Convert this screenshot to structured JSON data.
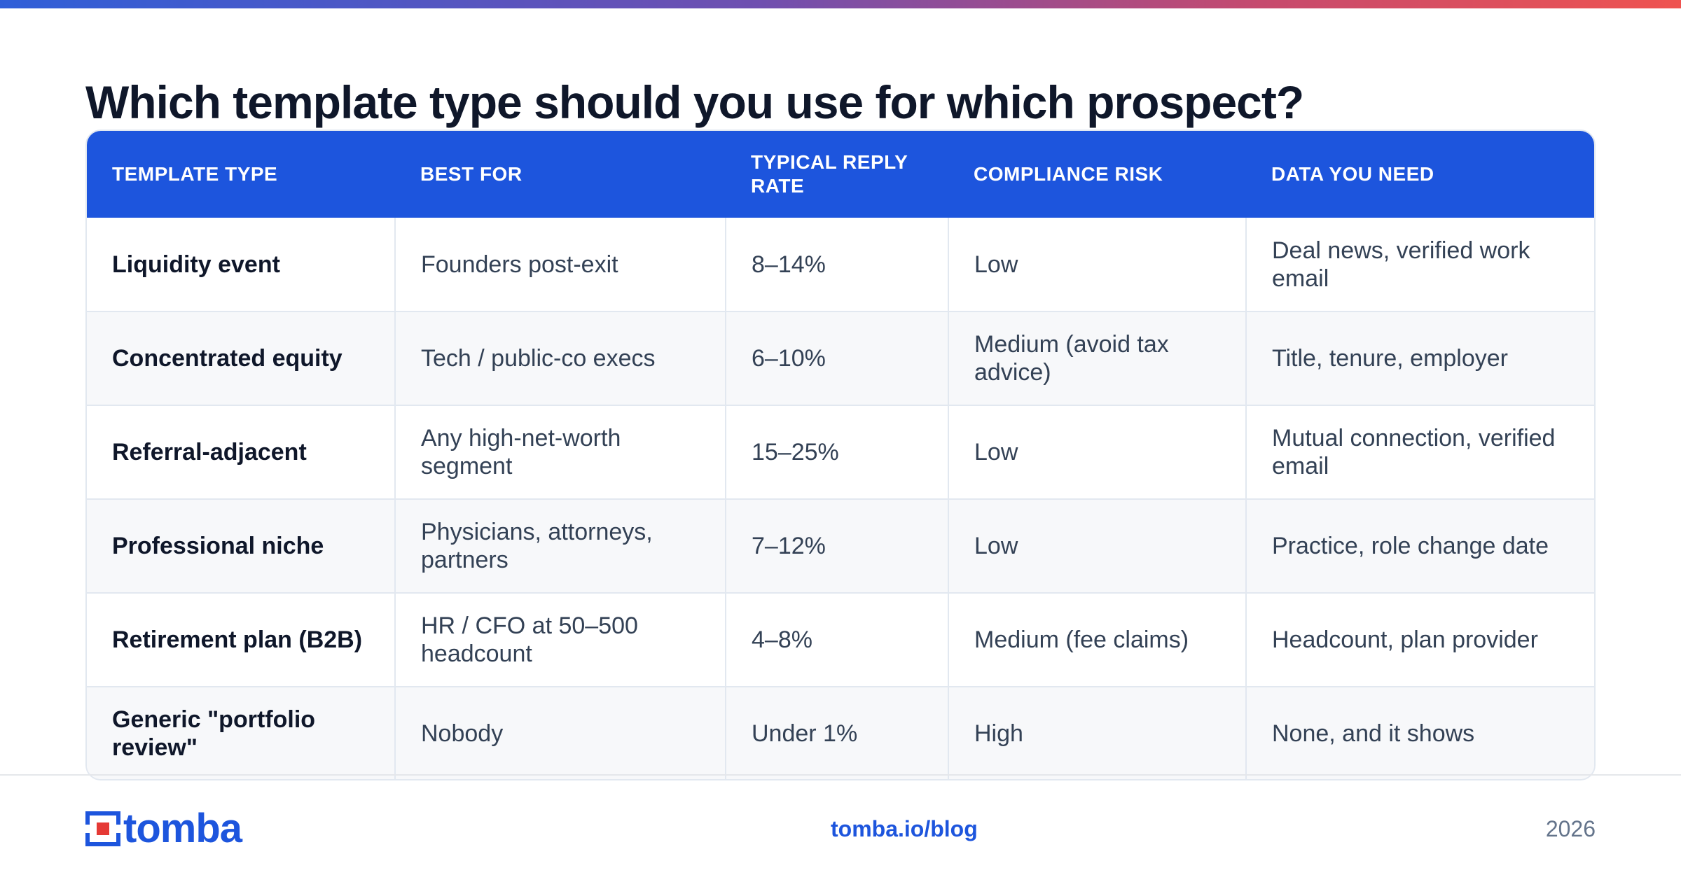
{
  "title": "Which template type should you use for which prospect?",
  "table": {
    "headers": [
      "TEMPLATE TYPE",
      "BEST FOR",
      "TYPICAL REPLY RATE",
      "COMPLIANCE RISK",
      "DATA YOU NEED"
    ],
    "rows": [
      [
        "Liquidity event",
        "Founders post-exit",
        "8–14%",
        "Low",
        "Deal news, verified work email"
      ],
      [
        "Concentrated equity",
        "Tech / public-co execs",
        "6–10%",
        "Medium (avoid tax advice)",
        "Title, tenure, employer"
      ],
      [
        "Referral-adjacent",
        "Any high-net-worth segment",
        "15–25%",
        "Low",
        "Mutual connection, verified email"
      ],
      [
        "Professional niche",
        "Physicians, attorneys, partners",
        "7–12%",
        "Low",
        "Practice, role change date"
      ],
      [
        "Retirement plan (B2B)",
        "HR / CFO at 50–500 headcount",
        "4–8%",
        "Medium (fee claims)",
        "Headcount, plan provider"
      ],
      [
        "Generic \"portfolio review\"",
        "Nobody",
        "Under 1%",
        "High",
        "None, and it shows"
      ]
    ]
  },
  "footer": {
    "logo_text": "tomba",
    "link": "tomba.io/blog",
    "year": "2026"
  },
  "colors": {
    "accent": "#1d55dd",
    "header_bg": "#1d55dd",
    "title": "#0f172a",
    "logo_red": "#e53935"
  }
}
